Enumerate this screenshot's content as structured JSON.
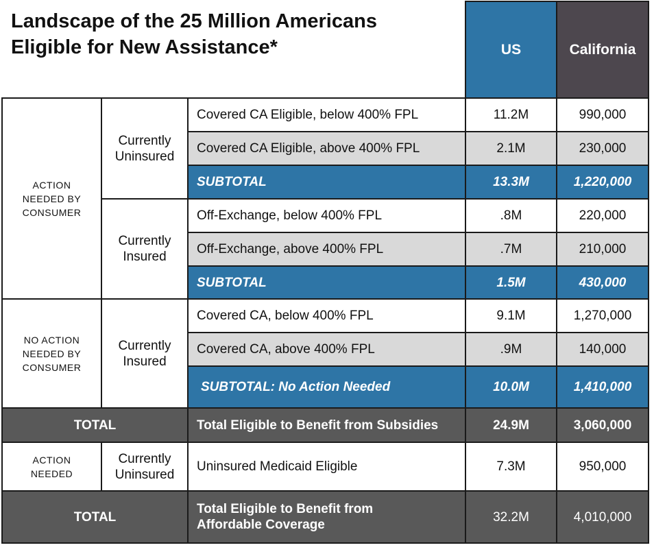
{
  "header": {
    "title": "Landscape of the 25 Million Americans Eligible for New Assistance*",
    "columns": [
      "US",
      "California"
    ]
  },
  "table": {
    "action_labels": [
      "ACTION NEEDED BY CONSUMER",
      "NO ACTION NEEDED BY CONSUMER",
      "ACTION NEEDED"
    ],
    "status_labels": [
      "Currently Uninsured",
      "Currently Insured",
      "Currently Insured",
      "Currently Uninsured"
    ],
    "total_labels": [
      "TOTAL",
      "TOTAL"
    ],
    "rows": [
      [
        "Covered  CA Eligible, below 400% FPL",
        "11.2M",
        "990,000"
      ],
      [
        "Covered  CA Eligible, above 400% FPL",
        "2.1M",
        "230,000"
      ],
      [
        "SUBTOTAL",
        "13.3M",
        "1,220,000"
      ],
      [
        "Off-Exchange, below 400% FPL",
        ".8M",
        "220,000"
      ],
      [
        "Off-Exchange, above 400% FPL",
        ".7M",
        "210,000"
      ],
      [
        "SUBTOTAL",
        "1.5M",
        "430,000"
      ],
      [
        "Covered  CA, below 400% FPL",
        "9.1M",
        "1,270,000"
      ],
      [
        "Covered  CA, above 400% FPL",
        ".9M",
        "140,000"
      ],
      [
        "SUBTOTAL: No Action Needed",
        "10.0M",
        "1,410,000"
      ],
      [
        "Total Eligible to Benefit from Subsidies",
        "24.9M",
        "3,060,000"
      ],
      [
        "Uninsured Medicaid Eligible",
        "7.3M",
        "950,000"
      ],
      [
        "Total Eligible to Benefit from Affordable Coverage",
        "32.2M",
        "4,010,000"
      ]
    ]
  }
}
